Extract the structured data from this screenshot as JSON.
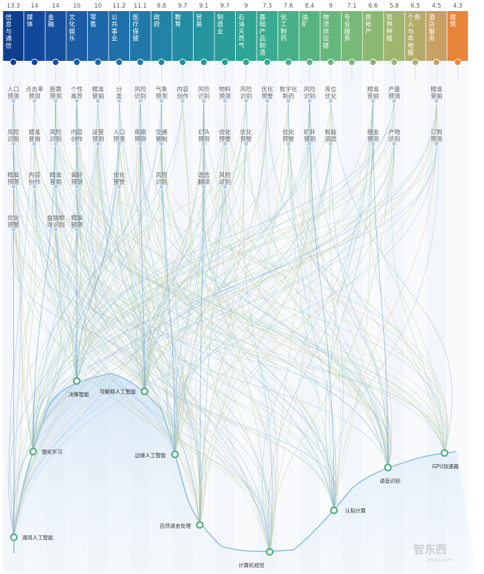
{
  "industries": [
    {
      "name": "信息与通信",
      "score": "13.3",
      "color": "#0d3f8e",
      "use_cases": [
        "人口预测",
        "风险识别",
        "精准预测",
        "优化预警"
      ]
    },
    {
      "name": "媒体",
      "score": "14",
      "color": "#12489a",
      "use_cases": [
        "点击率预测",
        "精准营销",
        "内容创作"
      ]
    },
    {
      "name": "金融",
      "score": "14",
      "color": "#16519f",
      "use_cases": [
        "股票预测",
        "风险识别",
        "精准营销",
        "金融欺诈识别"
      ]
    },
    {
      "name": "文化娱乐",
      "score": "10",
      "color": "#1a5ca6",
      "use_cases": [
        "个性推荐",
        "内容创作",
        "偏好预测",
        "精准预测"
      ]
    },
    {
      "name": "零售",
      "score": "10",
      "color": "#1d66a9",
      "use_cases": [
        "精准营销",
        "运营预测"
      ]
    },
    {
      "name": "公共事业",
      "score": "11.2",
      "color": "#1f70aa",
      "use_cases": [
        "分类",
        "人口预测",
        "优化预警"
      ]
    },
    {
      "name": "医疗保健",
      "score": "11.1",
      "color": "#2079a9",
      "use_cases": [
        "风险识别",
        "疾病预测"
      ]
    },
    {
      "name": "政府",
      "score": "9.8",
      "color": "#2283a6",
      "use_cases": [
        "气象预测",
        "交通管制",
        "风险识别"
      ]
    },
    {
      "name": "教育",
      "score": "9.7",
      "color": "#248ca2",
      "use_cases": [
        "内容创作"
      ]
    },
    {
      "name": "贸易",
      "score": "9.1",
      "color": "#26949d",
      "use_cases": [
        "风险识别",
        "ETA预测",
        "语言翻译"
      ]
    },
    {
      "name": "制造业",
      "score": "9.7",
      "color": "#299c98",
      "use_cases": [
        "物料预测",
        "优化预警",
        "风险识别"
      ]
    },
    {
      "name": "石油天然气",
      "score": "9",
      "color": "#2fa493",
      "use_cases": [
        "风险识别",
        "优化预警"
      ]
    },
    {
      "name": "基础产品制造",
      "score": "7.3",
      "color": "#3aab8e",
      "use_cases": [
        "优化预警"
      ]
    },
    {
      "name": "化工制药",
      "score": "7.6",
      "color": "#47b088",
      "use_cases": [
        "数字化制药",
        "优化预警"
      ]
    },
    {
      "name": "油矿",
      "score": "8.4",
      "color": "#56b482",
      "use_cases": [
        "风险识别",
        "矿井预测"
      ]
    },
    {
      "name": "物流供应链",
      "score": "9",
      "color": "#66b77c",
      "use_cases": [
        "库位优化",
        "智能调度"
      ]
    },
    {
      "name": "专业服务",
      "score": "7.1",
      "color": "#77b977",
      "use_cases": []
    },
    {
      "name": "房地产",
      "score": "6.6",
      "color": "#8bb972",
      "use_cases": [
        "精准营销",
        "租金预测"
      ]
    },
    {
      "name": "农林种植",
      "score": "5.8",
      "color": "#a0b66e",
      "use_cases": [
        "产量预测",
        "产物识别"
      ]
    },
    {
      "name": "个人与本地服务",
      "score": "6.5",
      "color": "#b4ad6a",
      "use_cases": []
    },
    {
      "name": "酒店服务",
      "score": "4.5",
      "color": "#c8a063",
      "use_cases": [
        "精准营销",
        "订购预测"
      ]
    },
    {
      "name": "建筑",
      "score": "4.3",
      "color": "#e9853a",
      "use_cases": []
    }
  ],
  "technologies": [
    {
      "name": "通用人工智能",
      "color": "#4caf7a"
    },
    {
      "name": "强化学习",
      "color": "#4caf7a"
    },
    {
      "name": "决策智能",
      "color": "#4caf7a"
    },
    {
      "name": "可解释人工智能",
      "color": "#4caf7a"
    },
    {
      "name": "边缘人工智能",
      "color": "#4caf7a"
    },
    {
      "name": "自然语言处理",
      "color": "#4caf7a"
    },
    {
      "name": "计算机视觉",
      "color": "#4caf7a"
    },
    {
      "name": "认知计算",
      "color": "#4caf7a"
    },
    {
      "name": "语音识别",
      "color": "#4caf7a"
    },
    {
      "name": "GPU加速器",
      "color": "#4caf7a"
    }
  ],
  "watermark": {
    "text": "智东西",
    "subtext": "zhidx.com"
  }
}
